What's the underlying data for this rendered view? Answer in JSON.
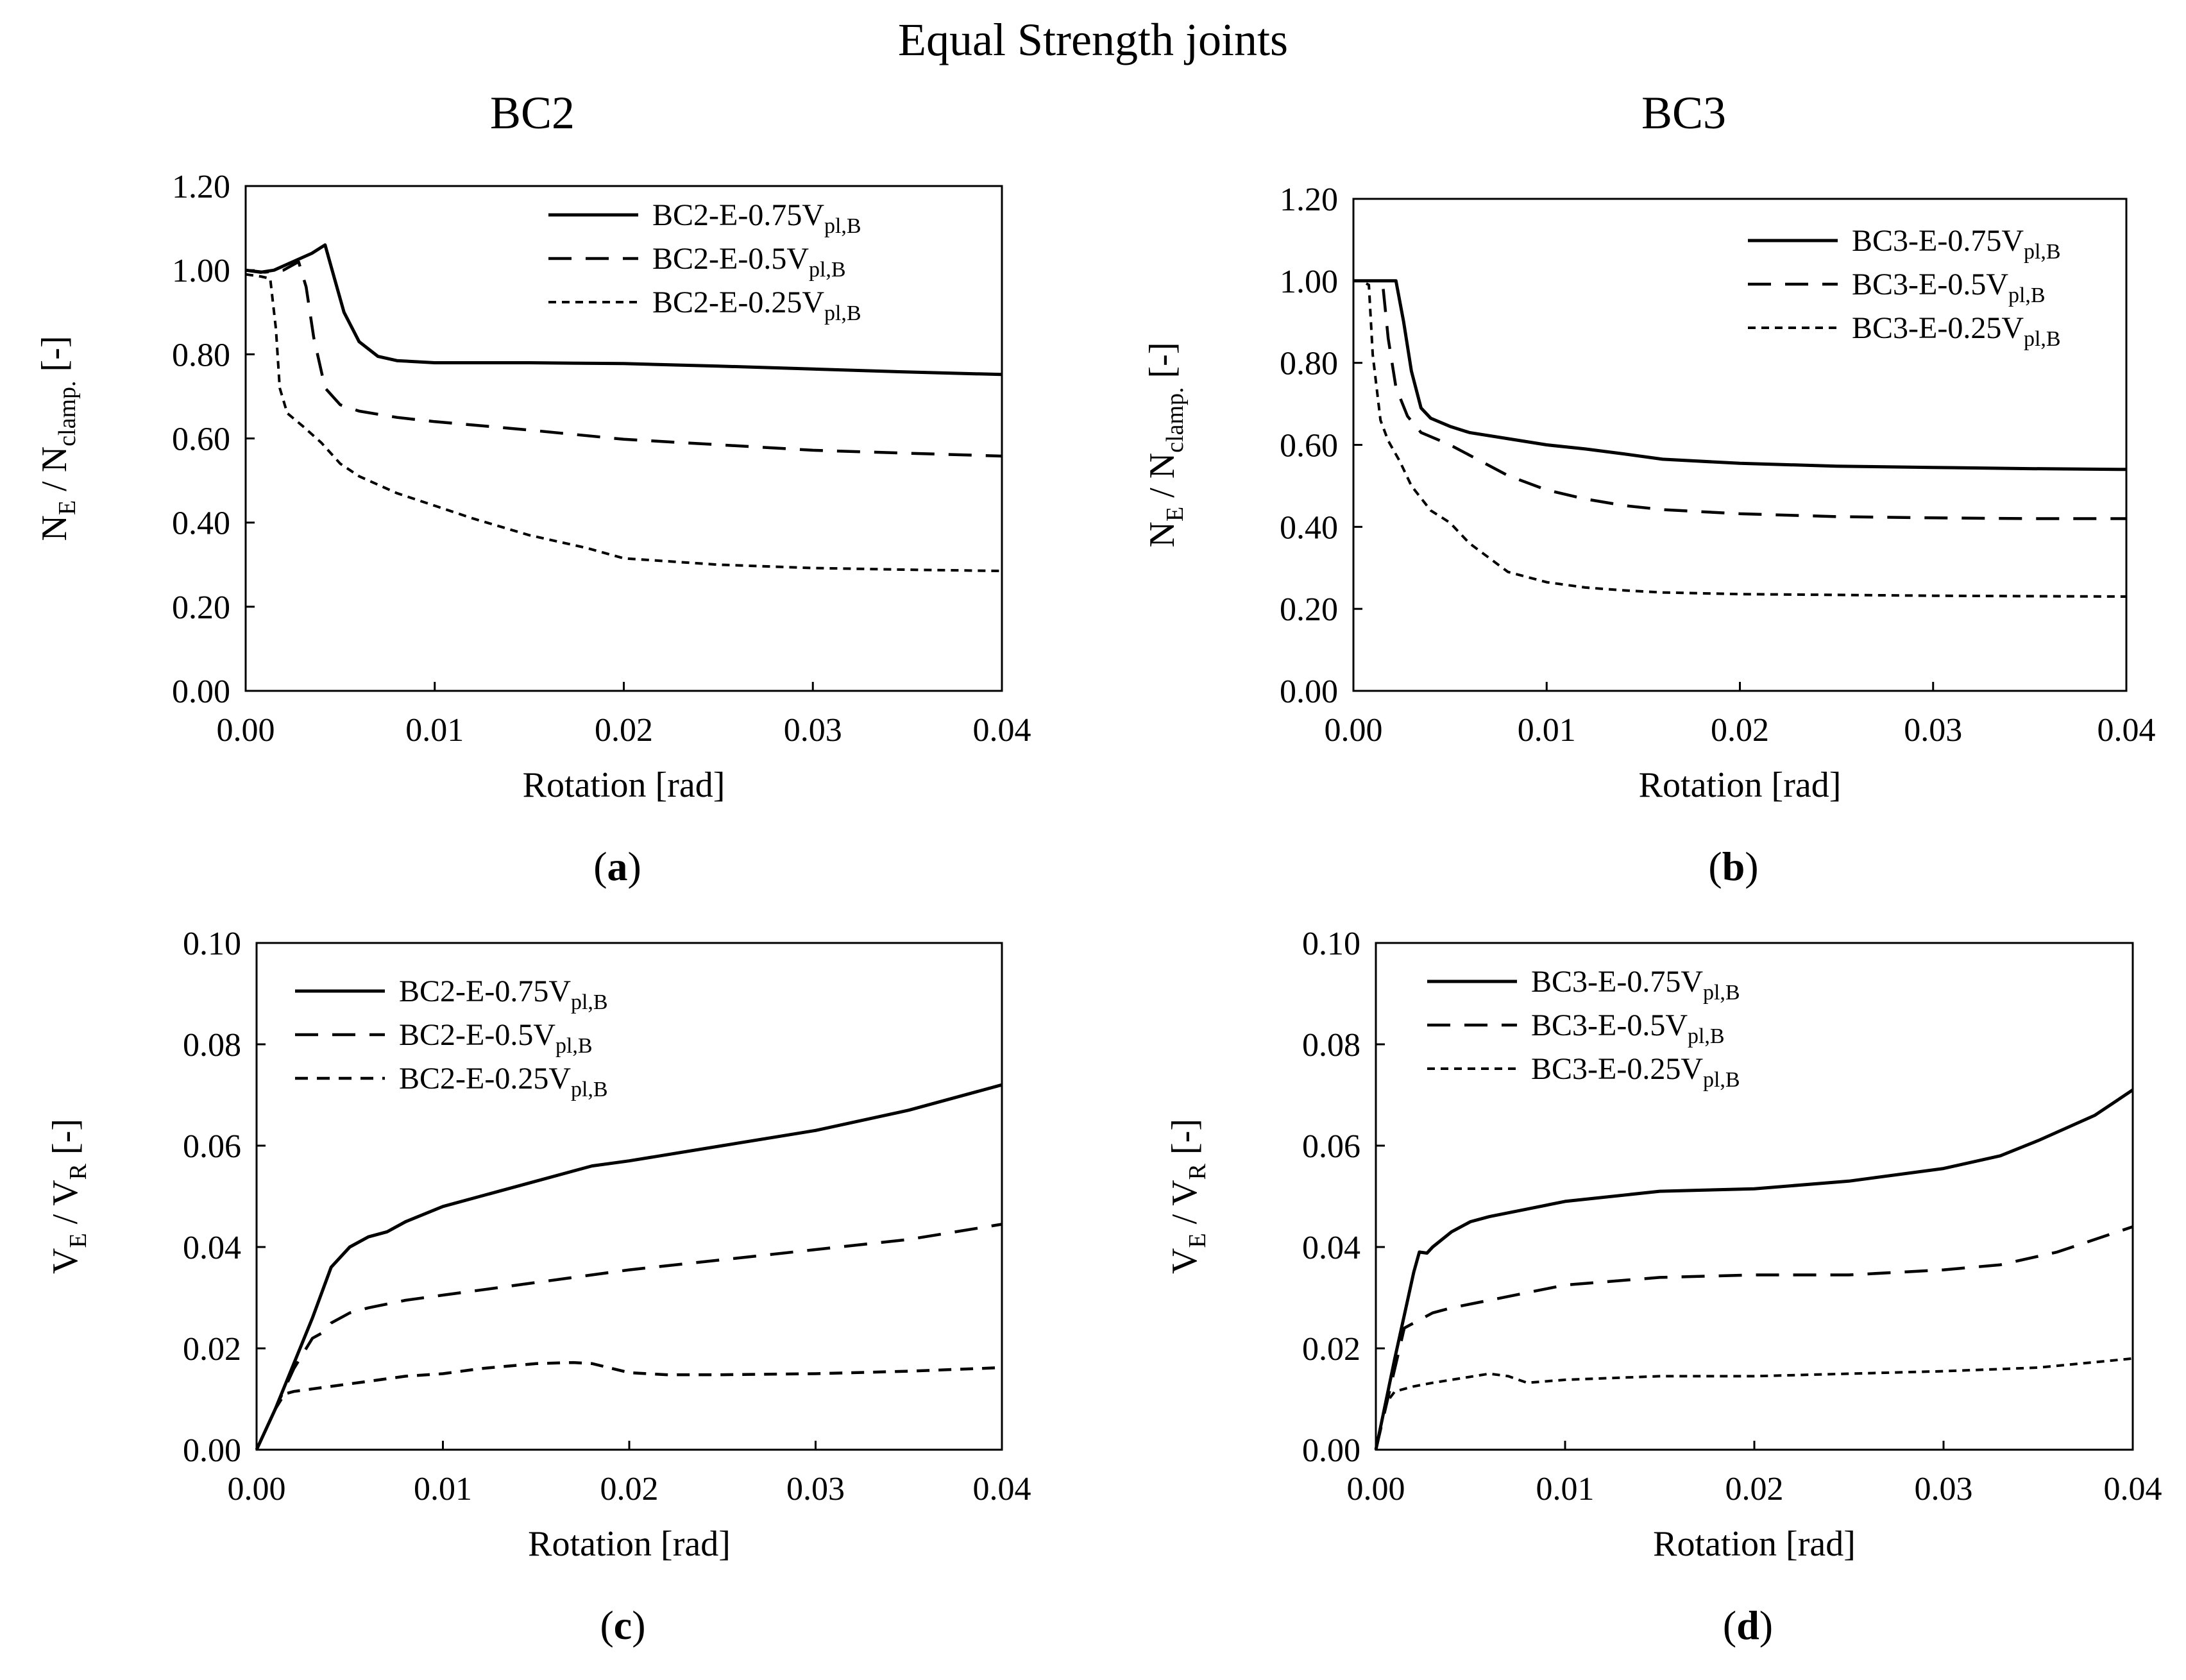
{
  "figure": {
    "title": "Equal Strength joints",
    "column_titles": [
      "BC2",
      "BC3"
    ]
  },
  "chart_data": [
    {
      "panel": "(a)",
      "panel_letter": "a",
      "type": "line",
      "xlabel": "Rotation [rad]",
      "ylabel": {
        "main": "N",
        "sub1": "E",
        "mid": " / N",
        "sub2": "clamp.",
        "tail": " [-]"
      },
      "xlim": [
        0,
        0.04
      ],
      "ylim": [
        0,
        1.2
      ],
      "xticks": [
        "0.00",
        "0.01",
        "0.02",
        "0.03",
        "0.04"
      ],
      "yticks": [
        "0.00",
        "0.20",
        "0.40",
        "0.60",
        "0.80",
        "1.00",
        "1.20"
      ],
      "legend_position": "top-right",
      "series": [
        {
          "name": "BC2-E-0.75V",
          "sub": "pl,B",
          "style": "solid",
          "x": [
            0,
            0.0008,
            0.0015,
            0.0025,
            0.0035,
            0.0042,
            0.0047,
            0.0052,
            0.006,
            0.007,
            0.008,
            0.01,
            0.015,
            0.02,
            0.025,
            0.03,
            0.035,
            0.04
          ],
          "y": [
            1.0,
            0.995,
            1.0,
            1.02,
            1.04,
            1.06,
            0.98,
            0.9,
            0.83,
            0.795,
            0.785,
            0.78,
            0.78,
            0.778,
            0.772,
            0.765,
            0.758,
            0.752
          ]
        },
        {
          "name": "BC2-E-0.5V",
          "sub": "pl,B",
          "style": "dashed",
          "x": [
            0,
            0.001,
            0.002,
            0.0028,
            0.0032,
            0.0036,
            0.0042,
            0.005,
            0.006,
            0.008,
            0.01,
            0.012,
            0.015,
            0.02,
            0.025,
            0.03,
            0.035,
            0.04
          ],
          "y": [
            1.0,
            0.995,
            1.0,
            1.02,
            0.96,
            0.84,
            0.72,
            0.68,
            0.665,
            0.65,
            0.64,
            0.632,
            0.62,
            0.598,
            0.585,
            0.572,
            0.565,
            0.558
          ]
        },
        {
          "name": "BC2-E-0.25V",
          "sub": "pl,B",
          "style": "dotted",
          "x": [
            0,
            0.0008,
            0.0013,
            0.0016,
            0.0018,
            0.0022,
            0.003,
            0.004,
            0.005,
            0.006,
            0.008,
            0.01,
            0.012,
            0.015,
            0.018,
            0.02,
            0.025,
            0.03,
            0.035,
            0.04
          ],
          "y": [
            0.99,
            0.985,
            0.98,
            0.86,
            0.72,
            0.66,
            0.63,
            0.59,
            0.54,
            0.51,
            0.47,
            0.44,
            0.41,
            0.37,
            0.34,
            0.315,
            0.3,
            0.292,
            0.288,
            0.285
          ]
        }
      ]
    },
    {
      "panel": "(b)",
      "panel_letter": "b",
      "type": "line",
      "xlabel": "Rotation [rad]",
      "ylabel": {
        "main": "N",
        "sub1": "E",
        "mid": " / N",
        "sub2": "clamp.",
        "tail": " [-]"
      },
      "xlim": [
        0,
        0.04
      ],
      "ylim": [
        0,
        1.2
      ],
      "xticks": [
        "0.00",
        "0.01",
        "0.02",
        "0.03",
        "0.04"
      ],
      "yticks": [
        "0.00",
        "0.20",
        "0.40",
        "0.60",
        "0.80",
        "1.00",
        "1.20"
      ],
      "legend_position": "top-right",
      "series": [
        {
          "name": "BC3-E-0.75V",
          "sub": "pl,B",
          "style": "solid",
          "x": [
            0,
            0.0008,
            0.0015,
            0.0022,
            0.0026,
            0.003,
            0.0035,
            0.004,
            0.005,
            0.006,
            0.008,
            0.01,
            0.012,
            0.014,
            0.016,
            0.02,
            0.025,
            0.03,
            0.035,
            0.04
          ],
          "y": [
            1.0,
            1.0,
            1.0,
            1.0,
            0.9,
            0.78,
            0.69,
            0.665,
            0.645,
            0.63,
            0.615,
            0.6,
            0.59,
            0.578,
            0.565,
            0.555,
            0.548,
            0.545,
            0.542,
            0.54
          ]
        },
        {
          "name": "BC3-E-0.5V",
          "sub": "pl,B",
          "style": "dashed",
          "x": [
            0,
            0.001,
            0.0015,
            0.0018,
            0.0022,
            0.0028,
            0.0035,
            0.005,
            0.006,
            0.008,
            0.01,
            0.012,
            0.014,
            0.016,
            0.02,
            0.025,
            0.03,
            0.035,
            0.04
          ],
          "y": [
            1.0,
            1.0,
            1.0,
            0.86,
            0.74,
            0.67,
            0.63,
            0.6,
            0.575,
            0.525,
            0.49,
            0.468,
            0.452,
            0.442,
            0.432,
            0.425,
            0.422,
            0.42,
            0.42
          ]
        },
        {
          "name": "BC3-E-0.25V",
          "sub": "pl,B",
          "style": "dotted",
          "x": [
            0,
            0.0004,
            0.0008,
            0.001,
            0.0014,
            0.0018,
            0.0024,
            0.003,
            0.004,
            0.005,
            0.006,
            0.008,
            0.01,
            0.012,
            0.014,
            0.016,
            0.02,
            0.025,
            0.03,
            0.035,
            0.04
          ],
          "y": [
            1.0,
            1.0,
            0.99,
            0.82,
            0.66,
            0.61,
            0.56,
            0.5,
            0.44,
            0.41,
            0.36,
            0.29,
            0.265,
            0.252,
            0.245,
            0.24,
            0.236,
            0.234,
            0.232,
            0.231,
            0.23
          ]
        }
      ]
    },
    {
      "panel": "(c)",
      "panel_letter": "c",
      "type": "line",
      "xlabel": "Rotation [rad]",
      "ylabel": {
        "main": "V",
        "sub1": "E",
        "mid": " / V",
        "sub2": "R",
        "tail": " [-]"
      },
      "xlim": [
        0,
        0.04
      ],
      "ylim": [
        0,
        0.1
      ],
      "xticks": [
        "0.00",
        "0.01",
        "0.02",
        "0.03",
        "0.04"
      ],
      "yticks": [
        "0.00",
        "0.02",
        "0.04",
        "0.06",
        "0.08",
        "0.10"
      ],
      "legend_position": "top-center",
      "series": [
        {
          "name": "BC2-E-0.75V",
          "sub": "pl,B",
          "style": "solid",
          "x": [
            0,
            0.001,
            0.002,
            0.003,
            0.004,
            0.0045,
            0.005,
            0.006,
            0.007,
            0.008,
            0.01,
            0.012,
            0.015,
            0.018,
            0.02,
            0.025,
            0.03,
            0.035,
            0.04
          ],
          "y": [
            0,
            0.008,
            0.017,
            0.026,
            0.036,
            0.038,
            0.04,
            0.042,
            0.043,
            0.045,
            0.048,
            0.05,
            0.053,
            0.056,
            0.057,
            0.06,
            0.063,
            0.067,
            0.072
          ]
        },
        {
          "name": "BC2-E-0.5V",
          "sub": "pl,B",
          "style": "dashed",
          "x": [
            0,
            0.001,
            0.002,
            0.003,
            0.0035,
            0.004,
            0.005,
            0.006,
            0.008,
            0.01,
            0.012,
            0.015,
            0.02,
            0.025,
            0.03,
            0.035,
            0.04
          ],
          "y": [
            0,
            0.008,
            0.016,
            0.022,
            0.023,
            0.025,
            0.027,
            0.028,
            0.0295,
            0.0305,
            0.0315,
            0.033,
            0.0355,
            0.0375,
            0.0395,
            0.0415,
            0.0445
          ]
        },
        {
          "name": "BC2-E-0.25V",
          "sub": "pl,B",
          "style": "dashed-fine",
          "x": [
            0,
            0.001,
            0.0015,
            0.002,
            0.003,
            0.005,
            0.008,
            0.01,
            0.012,
            0.015,
            0.017,
            0.018,
            0.02,
            0.022,
            0.025,
            0.03,
            0.035,
            0.04
          ],
          "y": [
            0,
            0.008,
            0.011,
            0.0115,
            0.012,
            0.013,
            0.0145,
            0.015,
            0.016,
            0.017,
            0.0172,
            0.017,
            0.0152,
            0.0148,
            0.0148,
            0.015,
            0.0155,
            0.0162
          ]
        }
      ]
    },
    {
      "panel": "(d)",
      "panel_letter": "d",
      "type": "line",
      "xlabel": "Rotation [rad]",
      "ylabel": {
        "main": "V",
        "sub1": "E",
        "mid": " / V",
        "sub2": "R",
        "tail": " [-]"
      },
      "xlim": [
        0,
        0.04
      ],
      "ylim": [
        0,
        0.1
      ],
      "xticks": [
        "0.00",
        "0.01",
        "0.02",
        "0.03",
        "0.04"
      ],
      "yticks": [
        "0.00",
        "0.02",
        "0.04",
        "0.06",
        "0.08",
        "0.10"
      ],
      "legend_position": "top-left",
      "series": [
        {
          "name": "BC3-E-0.75V",
          "sub": "pl,B",
          "style": "solid",
          "x": [
            0,
            0.001,
            0.002,
            0.0023,
            0.0027,
            0.003,
            0.004,
            0.005,
            0.006,
            0.008,
            0.01,
            0.015,
            0.02,
            0.025,
            0.03,
            0.033,
            0.035,
            0.038,
            0.04
          ],
          "y": [
            0,
            0.018,
            0.035,
            0.039,
            0.0388,
            0.04,
            0.043,
            0.045,
            0.046,
            0.0475,
            0.049,
            0.051,
            0.0515,
            0.053,
            0.0555,
            0.058,
            0.061,
            0.066,
            0.071
          ]
        },
        {
          "name": "BC3-E-0.5V",
          "sub": "pl,B",
          "style": "dashed",
          "x": [
            0,
            0.001,
            0.0015,
            0.002,
            0.0025,
            0.003,
            0.004,
            0.006,
            0.008,
            0.01,
            0.015,
            0.02,
            0.025,
            0.03,
            0.033,
            0.036,
            0.04
          ],
          "y": [
            0,
            0.016,
            0.024,
            0.025,
            0.026,
            0.027,
            0.028,
            0.0295,
            0.031,
            0.0325,
            0.034,
            0.0345,
            0.0345,
            0.0355,
            0.0365,
            0.039,
            0.044
          ]
        },
        {
          "name": "BC3-E-0.25V",
          "sub": "pl,B",
          "style": "dotted",
          "x": [
            0,
            0.0005,
            0.001,
            0.002,
            0.003,
            0.004,
            0.006,
            0.007,
            0.008,
            0.01,
            0.015,
            0.02,
            0.025,
            0.03,
            0.035,
            0.04
          ],
          "y": [
            0,
            0.009,
            0.0115,
            0.0125,
            0.0132,
            0.0138,
            0.015,
            0.0145,
            0.0132,
            0.0138,
            0.0145,
            0.0145,
            0.015,
            0.0155,
            0.0162,
            0.018
          ]
        }
      ]
    }
  ]
}
